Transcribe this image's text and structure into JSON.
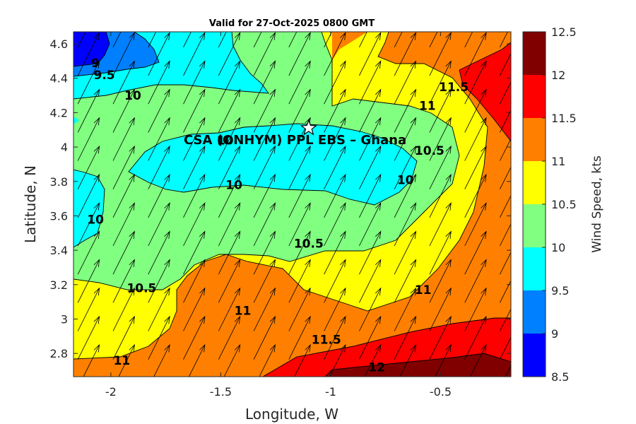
{
  "chart_data": {
    "type": "contour",
    "title": "Valid for 27-Oct-2025 0800 GMT",
    "xlabel": "Longitude, W",
    "ylabel": "Latitude, N",
    "xlim": [
      -2.17,
      -0.18
    ],
    "ylim": [
      2.665,
      4.67
    ],
    "xticks": [
      -2,
      -1.5,
      -1,
      -0.5
    ],
    "xtick_labels": [
      "-2",
      "-1.5",
      "-1",
      "-0.5"
    ],
    "yticks": [
      2.8,
      3,
      3.2,
      3.4,
      3.6,
      3.8,
      4,
      4.2,
      4.4,
      4.6
    ],
    "ytick_labels": [
      "2.8",
      "3",
      "3.2",
      "3.4",
      "3.6",
      "3.8",
      "4",
      "4.2",
      "4.4",
      "4.6"
    ],
    "colorbar": {
      "label": "Wind Speed, kts",
      "levels": [
        8.5,
        9,
        9.5,
        10,
        10.5,
        11,
        11.5,
        12,
        12.5
      ],
      "level_labels": [
        "8.5",
        "9",
        "9.5",
        "10",
        "10.5",
        "11",
        "11.5",
        "12",
        "12.5"
      ],
      "colors": [
        "#0000ff",
        "#0080ff",
        "#00ffff",
        "#80ff80",
        "#ffff00",
        "#ff8000",
        "#ff0000",
        "#800000"
      ]
    },
    "contour_labels": [
      {
        "text": "9",
        "lon": -2.07,
        "lat": 4.49
      },
      {
        "text": "9.5",
        "lon": -2.03,
        "lat": 4.42
      },
      {
        "text": "10",
        "lon": -1.9,
        "lat": 4.3
      },
      {
        "text": "10",
        "lon": -1.48,
        "lat": 4.04
      },
      {
        "text": "10",
        "lon": -1.44,
        "lat": 3.78
      },
      {
        "text": "10",
        "lon": -0.66,
        "lat": 3.81
      },
      {
        "text": "10",
        "lon": -2.07,
        "lat": 3.58
      },
      {
        "text": "10.5",
        "lon": -0.55,
        "lat": 3.98
      },
      {
        "text": "10.5",
        "lon": -1.1,
        "lat": 3.44
      },
      {
        "text": "10.5",
        "lon": -1.86,
        "lat": 3.18
      },
      {
        "text": "11",
        "lon": -0.56,
        "lat": 4.24
      },
      {
        "text": "11",
        "lon": -0.58,
        "lat": 3.17
      },
      {
        "text": "11",
        "lon": -1.4,
        "lat": 3.05
      },
      {
        "text": "11",
        "lon": -1.95,
        "lat": 2.76
      },
      {
        "text": "11.5",
        "lon": -0.44,
        "lat": 4.35
      },
      {
        "text": "11.5",
        "lon": -1.02,
        "lat": 2.88
      },
      {
        "text": "12",
        "lon": -0.79,
        "lat": 2.72
      }
    ],
    "site": {
      "name": "CSA (ONHYM) PPL EBS  – Ghana",
      "lon": -1.1,
      "lat": 4.11,
      "marker": "star"
    },
    "wind_vectors": "NNE arrows on a regular grid (~0.16° spacing) across the domain"
  }
}
